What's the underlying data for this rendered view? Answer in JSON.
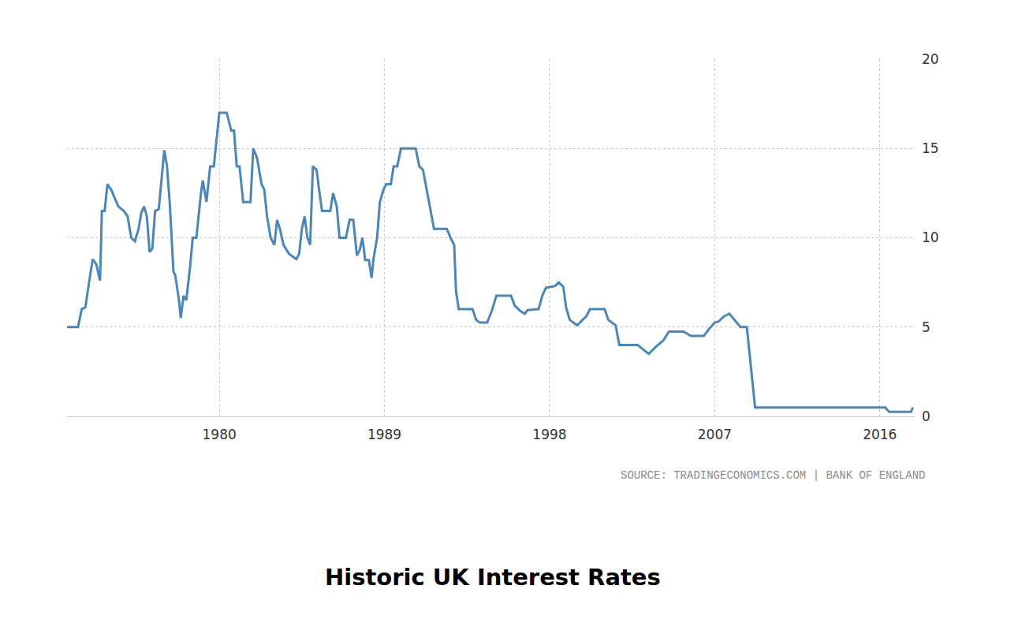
{
  "chart_data": {
    "type": "line",
    "title": "Historic UK Interest Rates",
    "annotations": [
      "SOURCE: TRADINGECONOMICS.COM | BANK OF ENGLAND"
    ],
    "color": "#4a86b8",
    "grid": true,
    "x": [
      1971.7,
      1972.3,
      1972.5,
      1972.7,
      1972.9,
      1973.1,
      1973.3,
      1973.5,
      1973.6,
      1973.75,
      1973.9,
      1974.1,
      1974.5,
      1974.8,
      1975.0,
      1975.2,
      1975.4,
      1975.6,
      1975.75,
      1975.9,
      1976.05,
      1976.2,
      1976.35,
      1976.5,
      1976.7,
      1976.9,
      1977.0,
      1977.15,
      1977.3,
      1977.4,
      1977.5,
      1977.6,
      1977.8,
      1977.9,
      1978.05,
      1978.2,
      1978.4,
      1978.55,
      1978.75,
      1979.0,
      1979.1,
      1979.3,
      1979.5,
      1979.7,
      1979.85,
      1980.0,
      1980.4,
      1980.65,
      1980.8,
      1980.95,
      1981.1,
      1981.3,
      1981.7,
      1981.85,
      1982.05,
      1982.3,
      1982.45,
      1982.6,
      1982.8,
      1983.0,
      1983.15,
      1983.3,
      1983.5,
      1983.8,
      1984.2,
      1984.35,
      1984.5,
      1984.65,
      1984.8,
      1984.95,
      1985.1,
      1985.3,
      1985.45,
      1985.6,
      1986.05,
      1986.2,
      1986.4,
      1986.55,
      1986.9,
      1987.1,
      1987.3,
      1987.5,
      1987.65,
      1987.8,
      1987.95,
      1988.15,
      1988.3,
      1988.4,
      1988.6,
      1988.75,
      1988.95,
      1989.1,
      1989.35,
      1989.5,
      1989.7,
      1989.9,
      1990.7,
      1990.9,
      1991.1,
      1991.3,
      1991.45,
      1991.7,
      1992.4,
      1992.6,
      1992.8,
      1992.9,
      1993.05,
      1993.8,
      1994.0,
      1994.2,
      1994.6,
      1994.85,
      1995.1,
      1995.9,
      1996.1,
      1996.4,
      1996.65,
      1996.8,
      1997.4,
      1997.6,
      1997.8,
      1998.3,
      1998.5,
      1998.75,
      1998.9,
      1999.1,
      1999.5,
      2000.0,
      2000.2,
      2001.0,
      2001.2,
      2001.6,
      2001.8,
      2002.8,
      2003.1,
      2003.4,
      2003.8,
      2004.2,
      2004.5,
      2005.3,
      2005.7,
      2006.4,
      2006.7,
      2007.0,
      2007.2,
      2007.5,
      2007.8,
      2008.2,
      2008.4,
      2008.75,
      2009.0,
      2009.2,
      2016.3,
      2016.5,
      2017.7,
      2017.8
    ],
    "values": [
      5.0,
      5.0,
      6.0,
      6.1,
      7.5,
      8.8,
      8.5,
      7.6,
      11.5,
      11.5,
      13.0,
      12.7,
      11.75,
      11.5,
      11.2,
      10.0,
      9.8,
      10.5,
      11.4,
      11.75,
      11.2,
      9.2,
      9.4,
      11.5,
      11.6,
      13.6,
      14.9,
      14.0,
      11.9,
      10.0,
      8.1,
      7.9,
      6.5,
      5.5,
      6.75,
      6.5,
      8.3,
      10.0,
      10.0,
      12.5,
      13.2,
      12.0,
      14.0,
      14.0,
      15.6,
      17.0,
      17.0,
      16.0,
      16.0,
      14.0,
      14.0,
      12.0,
      12.0,
      15.0,
      14.5,
      13.0,
      12.7,
      11.2,
      10.0,
      9.6,
      11.0,
      10.5,
      9.6,
      9.1,
      8.8,
      9.1,
      10.5,
      11.2,
      10.0,
      9.6,
      14.0,
      13.8,
      12.6,
      11.5,
      11.5,
      12.5,
      11.75,
      10.0,
      10.0,
      11.0,
      11.0,
      9.0,
      9.3,
      10.0,
      8.75,
      8.75,
      7.75,
      8.8,
      10.0,
      12.0,
      12.7,
      13.0,
      13.0,
      14.0,
      14.0,
      15.0,
      15.0,
      14.0,
      13.8,
      12.7,
      11.8,
      10.5,
      10.5,
      10.0,
      9.6,
      7.0,
      6.0,
      6.0,
      5.4,
      5.25,
      5.25,
      5.9,
      6.75,
      6.75,
      6.2,
      5.9,
      5.75,
      5.95,
      6.0,
      6.75,
      7.2,
      7.3,
      7.5,
      7.25,
      6.1,
      5.4,
      5.1,
      5.6,
      6.0,
      6.0,
      5.4,
      5.1,
      4.0,
      4.0,
      3.75,
      3.5,
      3.9,
      4.25,
      4.75,
      4.75,
      4.5,
      4.5,
      4.9,
      5.25,
      5.3,
      5.6,
      5.75,
      5.25,
      5.0,
      5.0,
      2.5,
      0.5,
      0.5,
      0.25,
      0.25,
      0.5
    ],
    "xlim": [
      1971.7,
      2017.9
    ],
    "xticks": [
      1980,
      1989,
      1998,
      2007,
      2016
    ],
    "ylim": [
      0,
      20
    ],
    "yticks": [
      0,
      5,
      10,
      15,
      20
    ]
  }
}
